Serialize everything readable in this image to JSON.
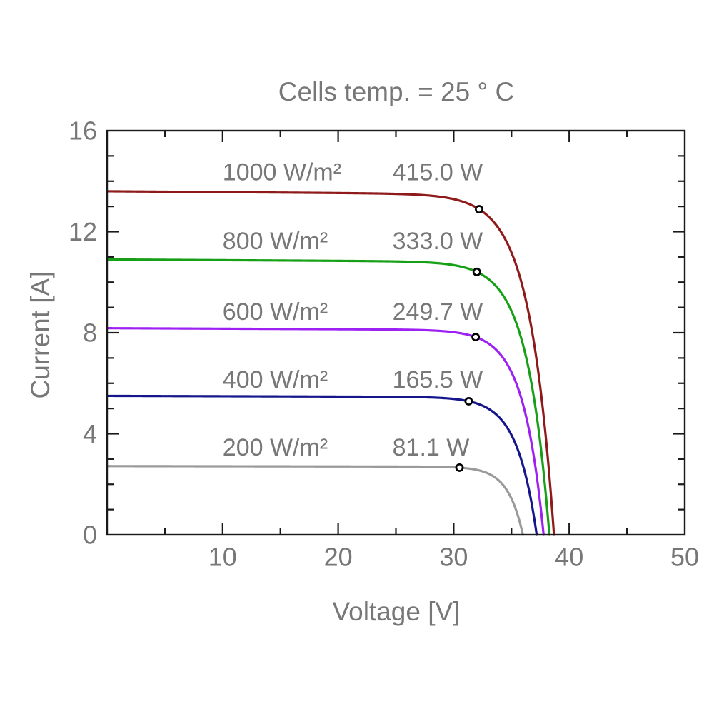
{
  "chart_data": {
    "type": "line",
    "title": "Cells temp. = 25 ° C",
    "xlabel": "Voltage [V]",
    "ylabel": "Current [A]",
    "xlim": [
      0,
      50
    ],
    "ylim": [
      0,
      16
    ],
    "x_major_ticks": [
      10,
      20,
      30,
      40,
      50
    ],
    "x_minor_step": 5,
    "y_major_ticks": [
      0,
      4,
      8,
      12,
      16
    ],
    "y_minor_step": 1,
    "grid": false,
    "legend_position": "inline-labels-above-curves",
    "axis_color": "#1a1a1a",
    "text_color": "#777777",
    "marker": {
      "shape": "circle",
      "fill": "#ffffff",
      "stroke": "#000000"
    },
    "label_anchor_voltage": {
      "irradiance": 10,
      "power": 24.7
    },
    "series": [
      {
        "id": "1000",
        "irradiance_label": "1000 W/m²",
        "power_label": "415.0 W",
        "color": "#8e1a1a",
        "isc_A": 13.6,
        "voc_V": 38.7,
        "vmp_V": 32.2,
        "pmp_W": 415.0,
        "label_current_A": 14.35
      },
      {
        "id": "800",
        "irradiance_label": "800 W/m²",
        "power_label": "333.0 W",
        "color": "#17a017",
        "isc_A": 10.9,
        "voc_V": 38.3,
        "vmp_V": 32.0,
        "pmp_W": 333.0,
        "label_current_A": 11.62
      },
      {
        "id": "600",
        "irradiance_label": "600 W/m²",
        "power_label": "249.7 W",
        "color": "#9c21f2",
        "isc_A": 8.18,
        "voc_V": 37.8,
        "vmp_V": 31.9,
        "pmp_W": 249.7,
        "label_current_A": 8.82
      },
      {
        "id": "400",
        "irradiance_label": "400 W/m²",
        "power_label": "165.5 W",
        "color": "#15158c",
        "isc_A": 5.5,
        "voc_V": 37.2,
        "vmp_V": 31.3,
        "pmp_W": 165.5,
        "label_current_A": 6.14
      },
      {
        "id": "200",
        "irradiance_label": "200 W/m²",
        "power_label": "81.1 W",
        "color": "#9a9a9a",
        "isc_A": 2.72,
        "voc_V": 36.0,
        "vmp_V": 30.5,
        "pmp_W": 81.1,
        "label_current_A": 3.45
      }
    ]
  }
}
